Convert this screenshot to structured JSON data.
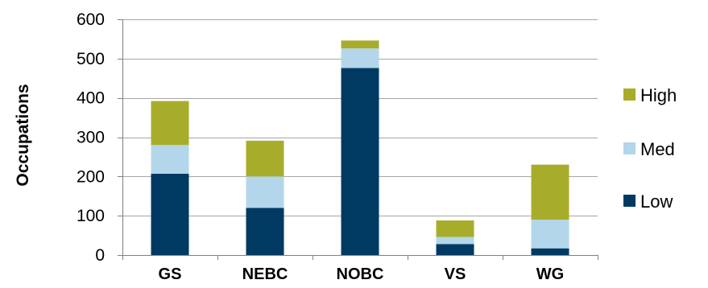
{
  "chart_data": {
    "type": "bar",
    "stacked": true,
    "categories": [
      "GS",
      "NEBC",
      "NOBC",
      "VS",
      "WG"
    ],
    "series": [
      {
        "name": "Low",
        "color": "#003a63",
        "values": [
          207,
          120,
          476,
          28,
          17
        ]
      },
      {
        "name": "Med",
        "color": "#b3d6ea",
        "values": [
          73,
          80,
          50,
          18,
          73
        ]
      },
      {
        "name": "High",
        "color": "#a7ad2a",
        "values": [
          112,
          91,
          20,
          42,
          140
        ]
      }
    ],
    "ylabel": "Occupations",
    "ylim": [
      0,
      600
    ],
    "yticks": [
      0,
      100,
      200,
      300,
      400,
      500,
      600
    ],
    "grid": true,
    "legend_position": "right",
    "legend_order": [
      "High",
      "Med",
      "Low"
    ],
    "colors": {
      "grid": "#a6a6a6",
      "axis": "#7f7f7f"
    }
  }
}
